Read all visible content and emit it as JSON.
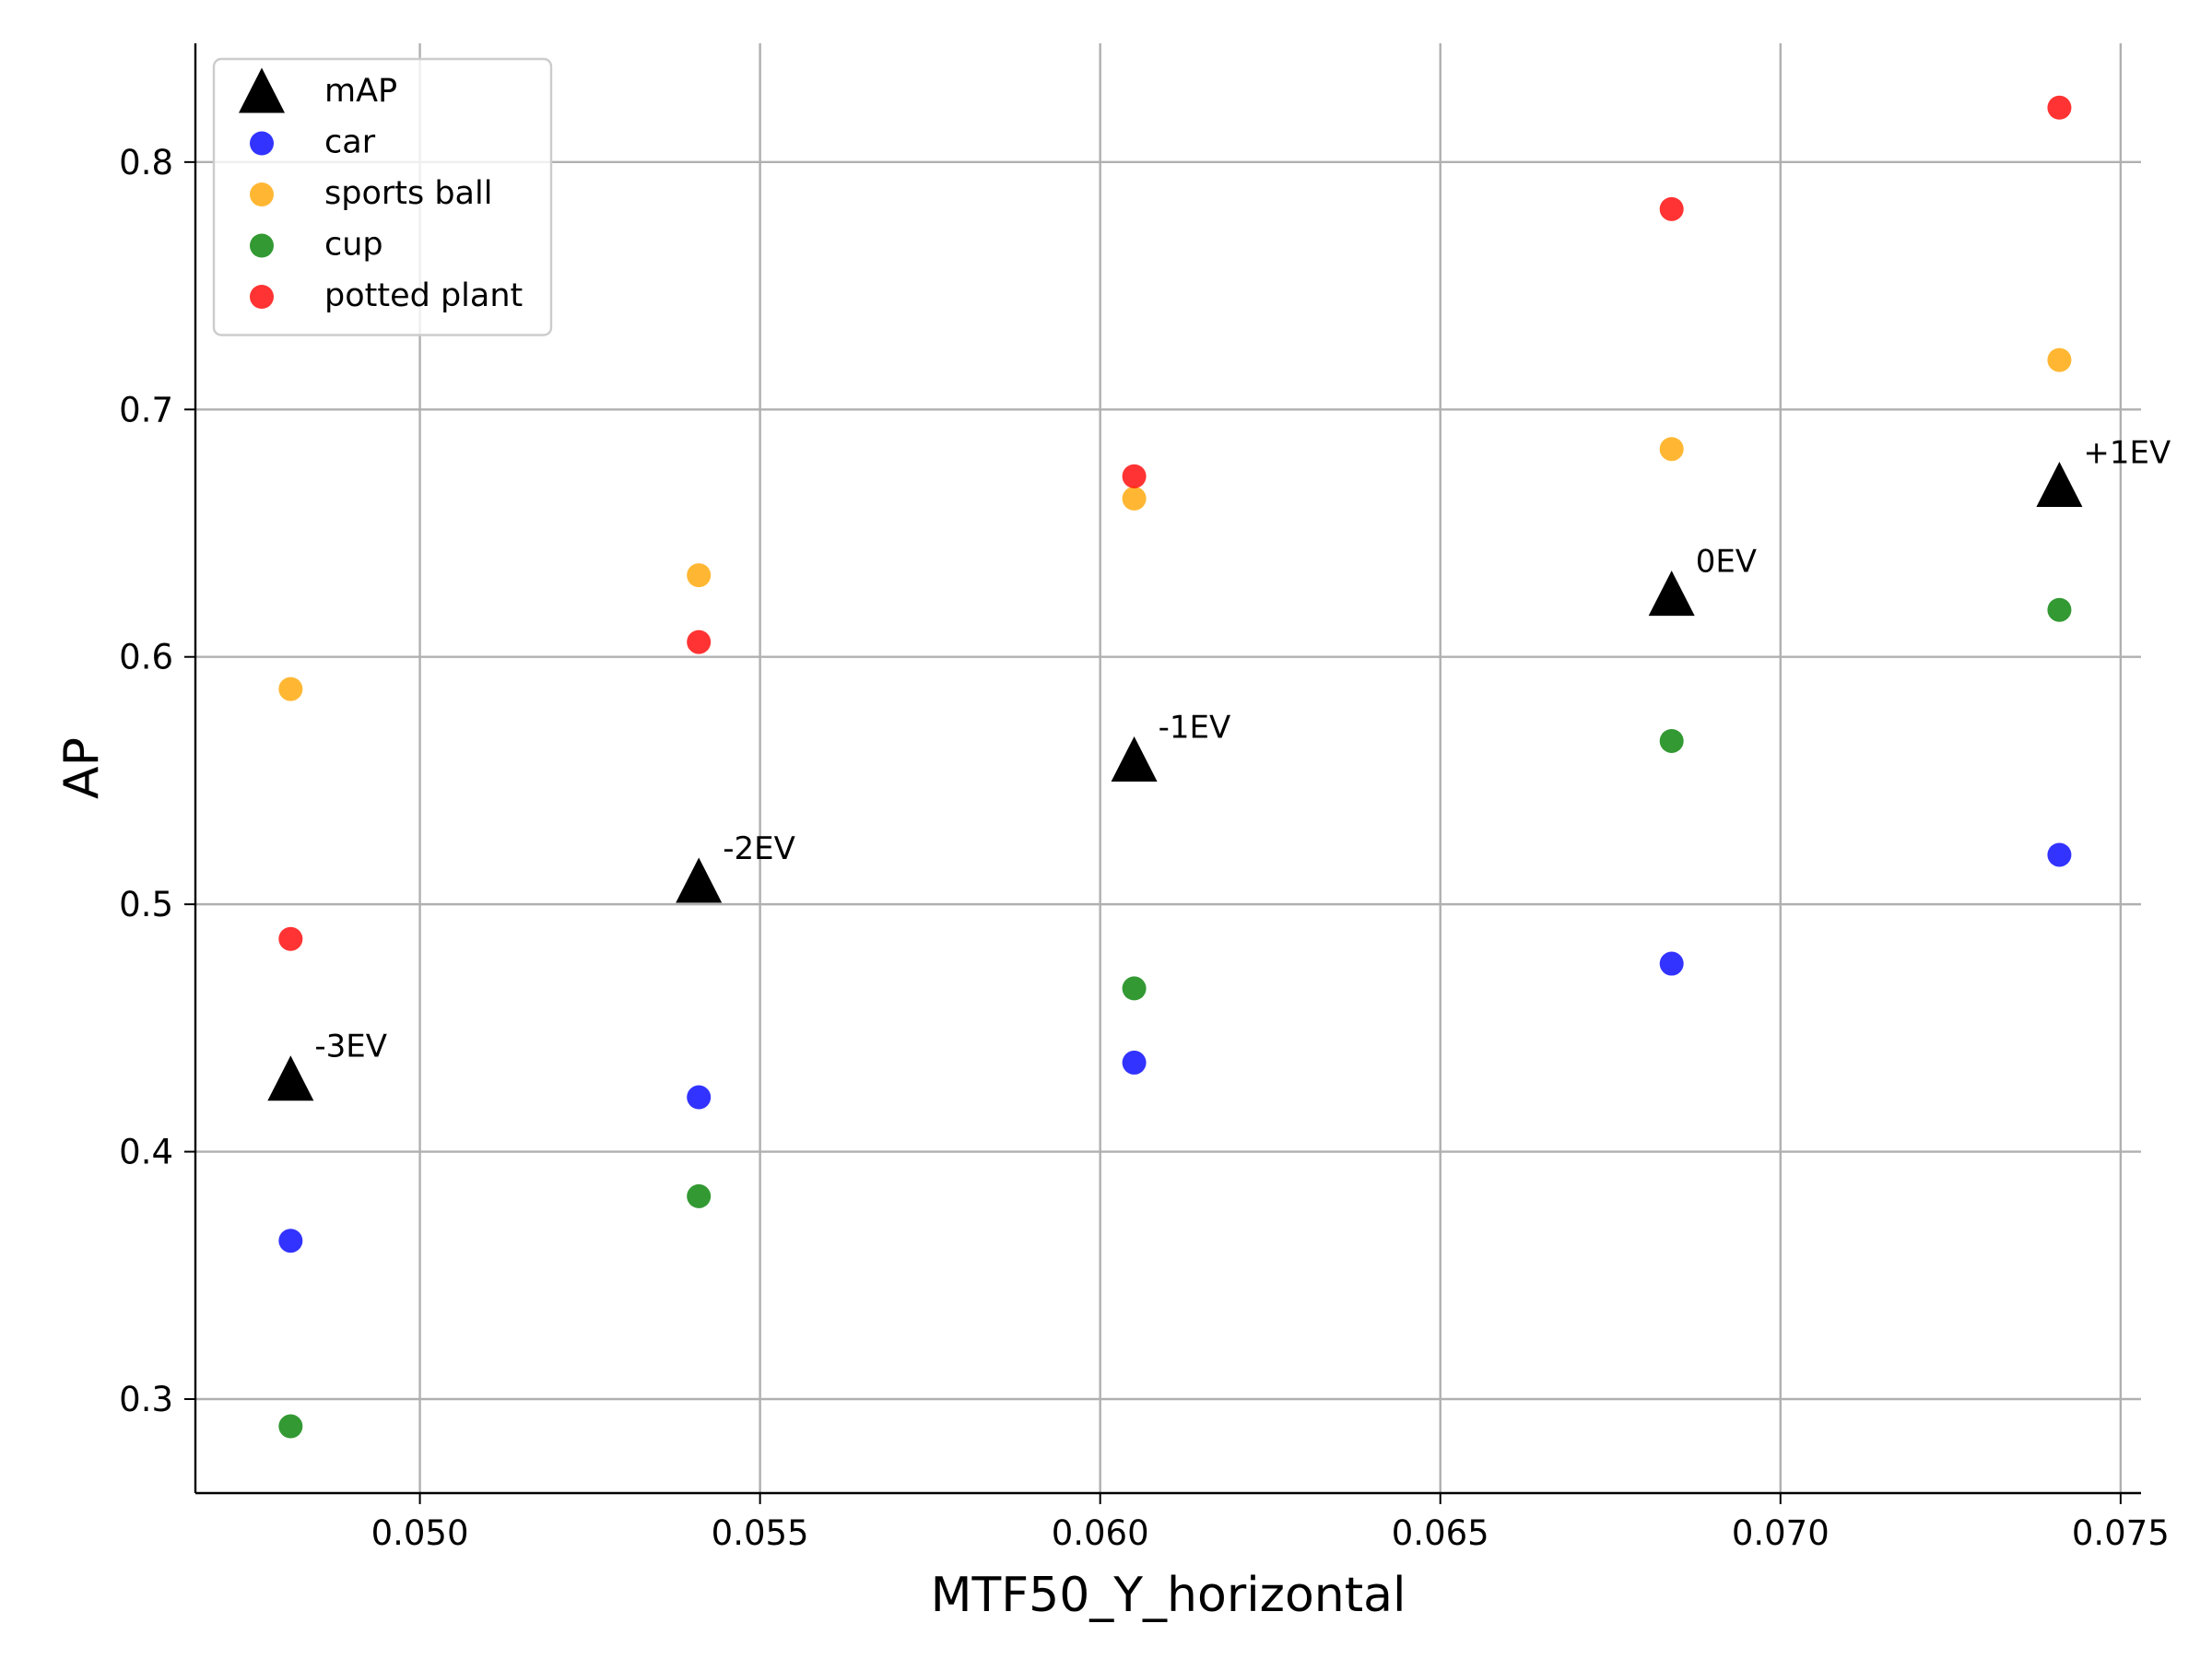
{
  "chart_data": {
    "type": "scatter",
    "xlabel": "MTF50_Y_horizontal",
    "ylabel": "AP",
    "xlim": [
      0.0467,
      0.0753
    ],
    "ylim": [
      0.262,
      0.848
    ],
    "xticks": [
      0.05,
      0.055,
      0.06,
      0.065,
      0.07,
      0.075
    ],
    "xtick_labels": [
      "0.050",
      "0.055",
      "0.060",
      "0.065",
      "0.070",
      "0.075"
    ],
    "yticks": [
      0.3,
      0.4,
      0.5,
      0.6,
      0.7,
      0.8
    ],
    "ytick_labels": [
      "0.3",
      "0.4",
      "0.5",
      "0.6",
      "0.7",
      "0.8"
    ],
    "grid": true,
    "legend_position": "top-left",
    "x": [
      0.0481,
      0.0541,
      0.0605,
      0.0684,
      0.0741
    ],
    "point_labels": [
      "-3EV",
      "-2EV",
      "-1EV",
      "0EV",
      "+1EV"
    ],
    "series": [
      {
        "name": "mAP",
        "marker": "triangle",
        "color": "#000000",
        "values": [
          0.429,
          0.509,
          0.558,
          0.625,
          0.669
        ]
      },
      {
        "name": "car",
        "marker": "circle",
        "color": "#0000ff",
        "values": [
          0.364,
          0.422,
          0.436,
          0.476,
          0.52
        ]
      },
      {
        "name": "sports ball",
        "marker": "circle",
        "color": "#ffa500",
        "values": [
          0.587,
          0.633,
          0.664,
          0.684,
          0.72
        ]
      },
      {
        "name": "cup",
        "marker": "circle",
        "color": "#008000",
        "values": [
          0.289,
          0.382,
          0.466,
          0.566,
          0.619
        ]
      },
      {
        "name": "potted plant",
        "marker": "circle",
        "color": "#ff0000",
        "values": [
          0.486,
          0.606,
          0.673,
          0.781,
          0.822
        ]
      }
    ]
  }
}
